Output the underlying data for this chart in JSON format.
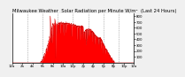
{
  "title": "Milwaukee Weather  Solar Radiation per Minute W/m²  (Last 24 Hours)",
  "bg_color": "#f0f0f0",
  "plot_bg_color": "#ffffff",
  "fill_color": "#ff0000",
  "line_color": "#cc0000",
  "grid_color": "#888888",
  "ylim": [
    0,
    850
  ],
  "yticks": [
    100,
    200,
    300,
    400,
    500,
    600,
    700,
    800
  ],
  "num_points": 1440,
  "title_fontsize": 3.8,
  "tick_fontsize": 2.8,
  "num_grid_lines": 7
}
